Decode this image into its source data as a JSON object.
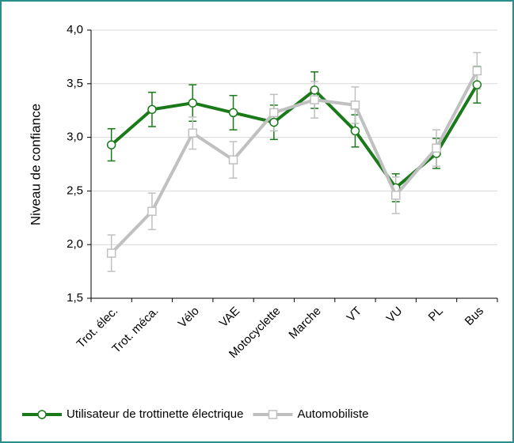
{
  "chart_data": {
    "type": "line",
    "y_label": "Niveau de confiance",
    "categories": [
      "Trot. élec.",
      "Trot. méca.",
      "Vélo",
      "VAE",
      "Motocyclette",
      "Marche",
      "VT",
      "VU",
      "PL",
      "Bus"
    ],
    "series": [
      {
        "name": "Utilisateur de trottinette électrique",
        "color": "#1a7a1a",
        "marker": "circle",
        "values": [
          2.93,
          3.26,
          3.32,
          3.23,
          3.14,
          3.44,
          3.06,
          2.53,
          2.85,
          3.49
        ],
        "errors": [
          0.15,
          0.16,
          0.17,
          0.16,
          0.16,
          0.17,
          0.15,
          0.13,
          0.14,
          0.17
        ]
      },
      {
        "name": "Automobiliste",
        "color": "#c0c0c0",
        "marker": "square",
        "values": [
          1.92,
          2.31,
          3.04,
          2.79,
          3.23,
          3.35,
          3.3,
          2.46,
          2.9,
          3.62
        ],
        "errors": [
          0.17,
          0.17,
          0.15,
          0.17,
          0.17,
          0.17,
          0.17,
          0.17,
          0.17,
          0.17
        ]
      }
    ],
    "ylim": [
      1.5,
      4.0
    ],
    "yticks": [
      {
        "value": 1.5,
        "label": "1,5"
      },
      {
        "value": 2.0,
        "label": "2,0"
      },
      {
        "value": 2.5,
        "label": "2,5"
      },
      {
        "value": 3.0,
        "label": "3,0"
      },
      {
        "value": 3.5,
        "label": "3,5"
      },
      {
        "value": 4.0,
        "label": "4,0"
      }
    ],
    "grid": true,
    "legend": "bottom"
  }
}
